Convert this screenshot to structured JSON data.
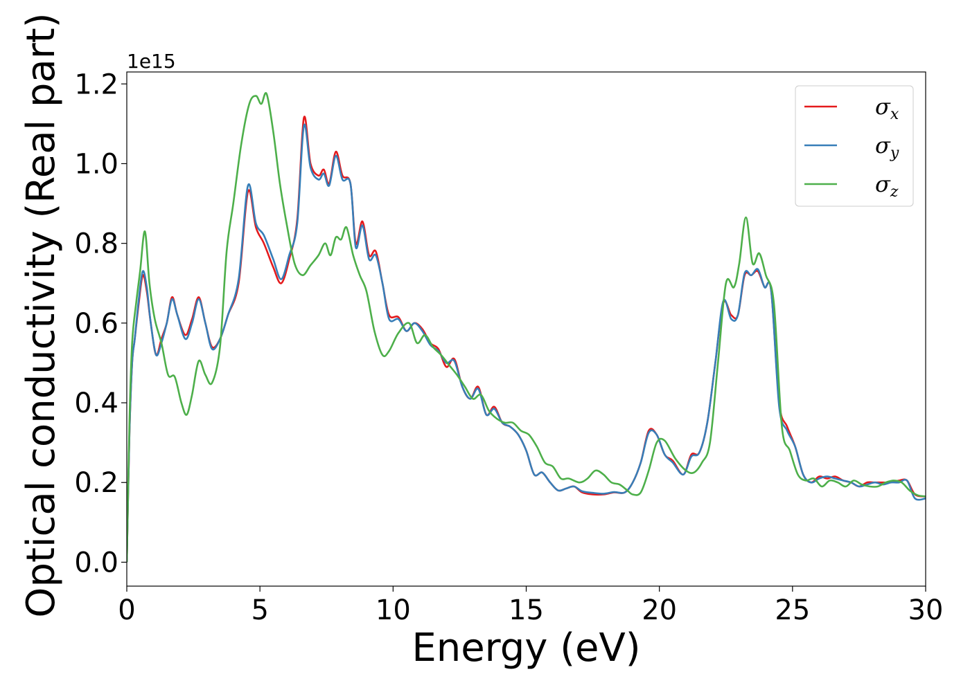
{
  "chart_data": {
    "type": "line",
    "title": "",
    "xlabel": "Energy (eV)",
    "ylabel": "Optical conductivity (Real part)",
    "y_offset_label": "1e15",
    "xlim": [
      0,
      30
    ],
    "ylim": [
      -0.06,
      1.23
    ],
    "x_ticks": [
      0,
      5,
      10,
      15,
      20,
      25,
      30
    ],
    "y_ticks": [
      0.0,
      0.2,
      0.4,
      0.6,
      0.8,
      1.0,
      1.2
    ],
    "x_tick_labels": [
      "0",
      "5",
      "10",
      "15",
      "20",
      "25",
      "30"
    ],
    "y_tick_labels": [
      "0.0",
      "0.2",
      "0.4",
      "0.6",
      "0.8",
      "1.0",
      "1.2"
    ],
    "grid": false,
    "legend_position": "top-right",
    "series": [
      {
        "name": "σx",
        "symbol": "σ",
        "subscript": "x",
        "color": "#e41a1c",
        "x": [
          0.0,
          0.1,
          0.2,
          0.3,
          0.45,
          0.6,
          0.75,
          0.9,
          1.1,
          1.3,
          1.5,
          1.7,
          1.9,
          2.2,
          2.45,
          2.7,
          2.95,
          3.2,
          3.5,
          3.8,
          4.2,
          4.55,
          4.85,
          5.15,
          5.5,
          5.8,
          6.1,
          6.4,
          6.65,
          6.9,
          7.2,
          7.4,
          7.6,
          7.85,
          8.1,
          8.4,
          8.6,
          8.85,
          9.1,
          9.35,
          9.6,
          9.85,
          10.2,
          10.5,
          10.8,
          11.1,
          11.4,
          11.7,
          12.0,
          12.3,
          12.6,
          12.9,
          13.2,
          13.5,
          13.8,
          14.1,
          14.4,
          14.7,
          15.0,
          15.3,
          15.6,
          15.9,
          16.2,
          16.5,
          16.8,
          17.1,
          17.5,
          17.9,
          18.3,
          18.7,
          19.0,
          19.3,
          19.6,
          19.9,
          20.2,
          20.5,
          20.9,
          21.2,
          21.5,
          21.8,
          22.1,
          22.4,
          22.7,
          22.95,
          23.2,
          23.45,
          23.7,
          23.95,
          24.2,
          24.5,
          24.8,
          25.1,
          25.4,
          25.7,
          26.0,
          26.3,
          26.6,
          26.9,
          27.2,
          27.5,
          27.8,
          28.1,
          28.4,
          28.7,
          29.0,
          29.3,
          29.6,
          30.0
        ],
        "values": [
          0.0,
          0.32,
          0.5,
          0.56,
          0.65,
          0.72,
          0.68,
          0.6,
          0.52,
          0.56,
          0.6,
          0.665,
          0.62,
          0.57,
          0.61,
          0.665,
          0.6,
          0.54,
          0.56,
          0.62,
          0.7,
          0.93,
          0.84,
          0.8,
          0.74,
          0.7,
          0.76,
          0.86,
          1.115,
          1.0,
          0.97,
          0.985,
          0.95,
          1.03,
          0.97,
          0.95,
          0.8,
          0.855,
          0.77,
          0.78,
          0.7,
          0.62,
          0.615,
          0.58,
          0.6,
          0.585,
          0.55,
          0.535,
          0.49,
          0.51,
          0.44,
          0.41,
          0.44,
          0.37,
          0.39,
          0.35,
          0.34,
          0.32,
          0.28,
          0.22,
          0.225,
          0.2,
          0.18,
          0.185,
          0.19,
          0.175,
          0.17,
          0.17,
          0.175,
          0.175,
          0.2,
          0.25,
          0.33,
          0.32,
          0.27,
          0.255,
          0.22,
          0.27,
          0.275,
          0.35,
          0.5,
          0.65,
          0.62,
          0.62,
          0.72,
          0.72,
          0.73,
          0.69,
          0.68,
          0.4,
          0.34,
          0.29,
          0.22,
          0.2,
          0.215,
          0.21,
          0.215,
          0.205,
          0.2,
          0.19,
          0.2,
          0.2,
          0.2,
          0.2,
          0.205,
          0.205,
          0.17,
          0.165
        ]
      },
      {
        "name": "σy",
        "symbol": "σ",
        "subscript": "y",
        "color": "#377eb8",
        "x": [
          0.0,
          0.1,
          0.2,
          0.3,
          0.45,
          0.6,
          0.75,
          0.9,
          1.1,
          1.3,
          1.5,
          1.7,
          1.9,
          2.2,
          2.45,
          2.7,
          2.95,
          3.2,
          3.5,
          3.8,
          4.2,
          4.55,
          4.85,
          5.15,
          5.5,
          5.8,
          6.1,
          6.4,
          6.65,
          6.9,
          7.2,
          7.4,
          7.6,
          7.85,
          8.1,
          8.4,
          8.6,
          8.85,
          9.1,
          9.35,
          9.6,
          9.85,
          10.2,
          10.5,
          10.8,
          11.1,
          11.4,
          11.7,
          12.0,
          12.3,
          12.6,
          12.9,
          13.2,
          13.5,
          13.8,
          14.1,
          14.4,
          14.7,
          15.0,
          15.3,
          15.6,
          15.9,
          16.2,
          16.5,
          16.8,
          17.1,
          17.5,
          17.9,
          18.3,
          18.7,
          19.0,
          19.3,
          19.6,
          19.9,
          20.2,
          20.5,
          20.9,
          21.2,
          21.5,
          21.8,
          22.1,
          22.4,
          22.7,
          22.95,
          23.2,
          23.45,
          23.7,
          23.95,
          24.2,
          24.5,
          24.8,
          25.1,
          25.4,
          25.7,
          26.0,
          26.3,
          26.6,
          26.9,
          27.2,
          27.5,
          27.8,
          28.1,
          28.4,
          28.7,
          29.0,
          29.3,
          29.6,
          30.0
        ],
        "values": [
          0.0,
          0.32,
          0.5,
          0.56,
          0.66,
          0.73,
          0.69,
          0.6,
          0.52,
          0.55,
          0.6,
          0.66,
          0.62,
          0.56,
          0.6,
          0.66,
          0.6,
          0.535,
          0.56,
          0.62,
          0.71,
          0.945,
          0.85,
          0.82,
          0.76,
          0.71,
          0.77,
          0.85,
          1.095,
          0.99,
          0.96,
          0.975,
          0.945,
          1.02,
          0.96,
          0.95,
          0.79,
          0.845,
          0.76,
          0.77,
          0.7,
          0.61,
          0.61,
          0.58,
          0.6,
          0.58,
          0.545,
          0.53,
          0.5,
          0.505,
          0.44,
          0.41,
          0.435,
          0.37,
          0.385,
          0.35,
          0.34,
          0.32,
          0.28,
          0.22,
          0.225,
          0.2,
          0.18,
          0.185,
          0.19,
          0.178,
          0.174,
          0.172,
          0.176,
          0.175,
          0.2,
          0.25,
          0.325,
          0.32,
          0.27,
          0.25,
          0.22,
          0.265,
          0.275,
          0.35,
          0.5,
          0.655,
          0.61,
          0.62,
          0.725,
          0.72,
          0.735,
          0.69,
          0.68,
          0.39,
          0.33,
          0.29,
          0.22,
          0.2,
          0.21,
          0.215,
          0.21,
          0.205,
          0.2,
          0.19,
          0.195,
          0.2,
          0.195,
          0.2,
          0.2,
          0.205,
          0.16,
          0.16
        ]
      },
      {
        "name": "σz",
        "symbol": "σ",
        "subscript": "z",
        "color": "#4daf4a",
        "x": [
          0.0,
          0.1,
          0.2,
          0.35,
          0.5,
          0.68,
          0.85,
          1.05,
          1.3,
          1.55,
          1.8,
          2.05,
          2.25,
          2.45,
          2.7,
          2.95,
          3.2,
          3.5,
          3.75,
          4.0,
          4.3,
          4.6,
          4.85,
          5.05,
          5.25,
          5.5,
          5.75,
          6.0,
          6.3,
          6.6,
          6.9,
          7.2,
          7.45,
          7.65,
          7.85,
          8.05,
          8.25,
          8.5,
          8.75,
          9.0,
          9.3,
          9.6,
          9.85,
          10.2,
          10.6,
          10.9,
          11.2,
          11.5,
          11.8,
          12.1,
          12.4,
          12.7,
          13.0,
          13.3,
          13.6,
          13.9,
          14.2,
          14.5,
          14.8,
          15.1,
          15.4,
          15.7,
          16.0,
          16.3,
          16.6,
          17.0,
          17.3,
          17.6,
          17.9,
          18.2,
          18.5,
          18.8,
          19.0,
          19.3,
          19.6,
          19.9,
          20.2,
          20.6,
          21.0,
          21.3,
          21.6,
          21.9,
          22.2,
          22.5,
          22.8,
          23.0,
          23.25,
          23.5,
          23.75,
          24.0,
          24.3,
          24.6,
          24.9,
          25.2,
          25.5,
          25.8,
          26.1,
          26.4,
          26.7,
          27.0,
          27.3,
          27.6,
          27.9,
          28.2,
          28.5,
          28.8,
          29.1,
          29.4,
          29.7,
          30.0
        ],
        "values": [
          0.0,
          0.35,
          0.55,
          0.65,
          0.73,
          0.83,
          0.7,
          0.61,
          0.55,
          0.47,
          0.465,
          0.4,
          0.37,
          0.42,
          0.505,
          0.47,
          0.45,
          0.54,
          0.78,
          0.9,
          1.05,
          1.15,
          1.17,
          1.15,
          1.175,
          1.08,
          0.95,
          0.85,
          0.75,
          0.72,
          0.745,
          0.77,
          0.8,
          0.77,
          0.815,
          0.81,
          0.84,
          0.77,
          0.72,
          0.68,
          0.58,
          0.52,
          0.53,
          0.575,
          0.6,
          0.55,
          0.57,
          0.54,
          0.52,
          0.495,
          0.47,
          0.44,
          0.41,
          0.42,
          0.38,
          0.36,
          0.35,
          0.35,
          0.33,
          0.32,
          0.29,
          0.25,
          0.24,
          0.21,
          0.21,
          0.2,
          0.21,
          0.23,
          0.22,
          0.2,
          0.195,
          0.18,
          0.17,
          0.175,
          0.23,
          0.3,
          0.305,
          0.26,
          0.23,
          0.225,
          0.25,
          0.3,
          0.5,
          0.7,
          0.69,
          0.75,
          0.865,
          0.75,
          0.775,
          0.72,
          0.65,
          0.34,
          0.28,
          0.22,
          0.205,
          0.21,
          0.19,
          0.205,
          0.2,
          0.19,
          0.205,
          0.195,
          0.19,
          0.19,
          0.2,
          0.205,
          0.2,
          0.18,
          0.168,
          0.165
        ]
      }
    ]
  }
}
